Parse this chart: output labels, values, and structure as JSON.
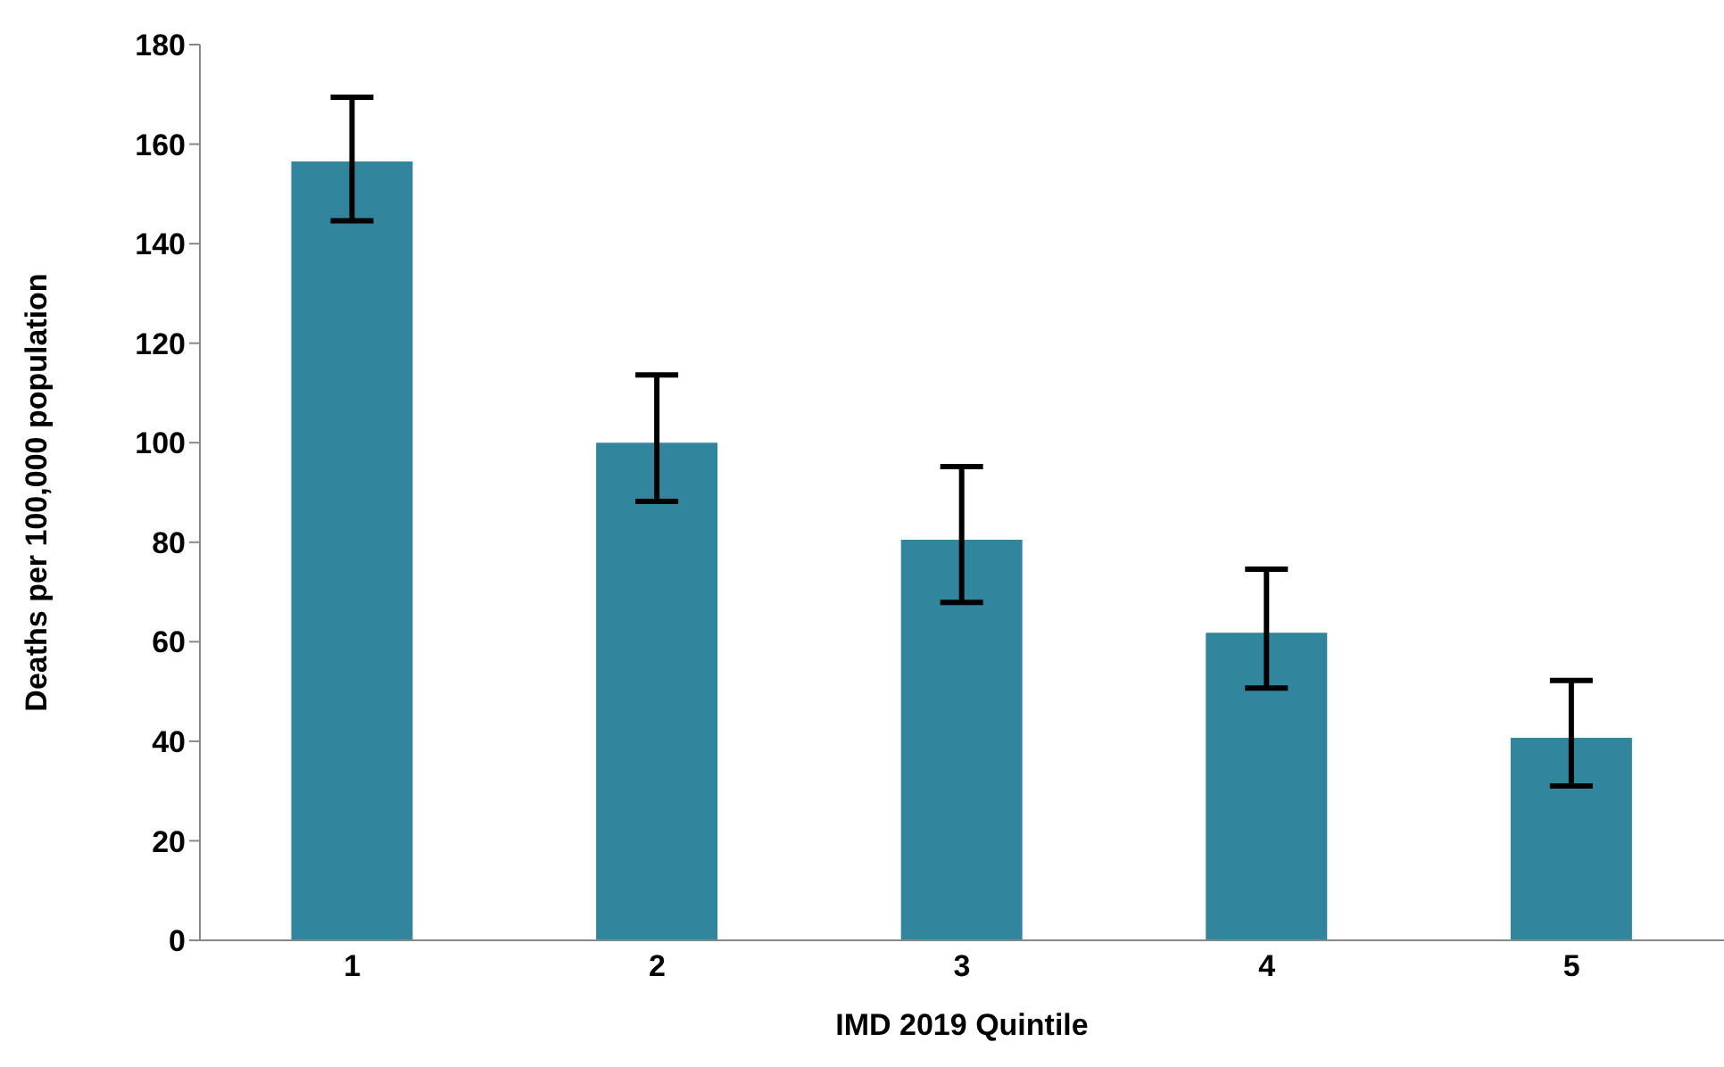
{
  "chart_data": {
    "type": "bar",
    "xlabel": "IMD 2019 Quintile",
    "ylabel": "Deaths per 100,000 population",
    "categories": [
      "1",
      "2",
      "3",
      "4",
      "5"
    ],
    "series": [
      {
        "color": "#31859c",
        "values": [
          156.5,
          100,
          80.5,
          61.8,
          40.7
        ],
        "errors": [
          [
            144.6,
            169.4
          ],
          [
            88.2,
            113.6
          ],
          [
            67.9,
            95.2
          ],
          [
            50.7,
            74.6
          ],
          [
            31,
            52.2
          ]
        ]
      }
    ],
    "ylim": [
      0,
      180
    ],
    "yticks": [
      0,
      20,
      40,
      60,
      80,
      100,
      120,
      140,
      160,
      180
    ],
    "grid": false,
    "legend": false
  }
}
